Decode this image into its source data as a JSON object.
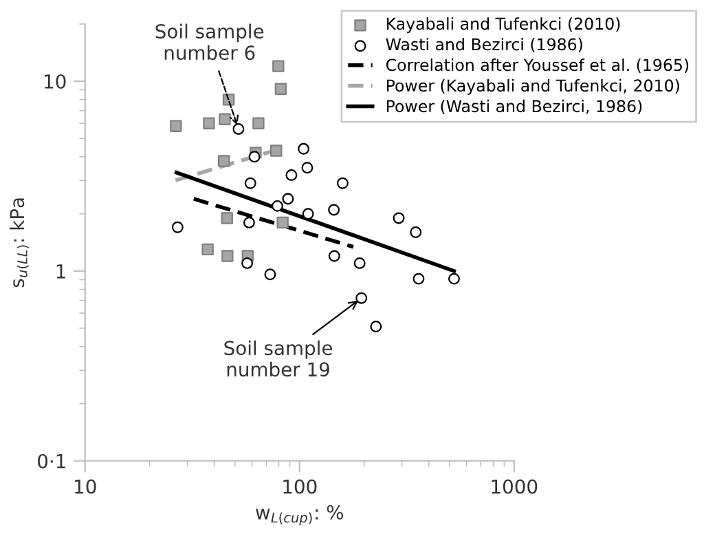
{
  "chart_data": {
    "type": "scatter",
    "xlabel": "w$_{L(cup)}$: %",
    "ylabel": "s$_{u(LL)}$: kPa",
    "log": "xy",
    "xlim": [
      10,
      1000
    ],
    "xticks": [
      10,
      100,
      1000
    ],
    "ylim": [
      0.1,
      20
    ],
    "yticks": [
      {
        "value": 0.1,
        "label": "0·1"
      },
      1,
      10
    ],
    "grid": false,
    "legend": "top right",
    "annotations": [
      {
        "text": "Soil sample\nnumber 6",
        "x": 51.9,
        "y": 5.6
      },
      {
        "text": "Soil sample\nnumber 19",
        "x": 194.2,
        "y": 0.72
      }
    ],
    "series": [
      {
        "name": "Kayabali and Tufenkci (2010)",
        "marker": "square",
        "color": "#a6a6a6",
        "x": [
          26.5,
          37.8,
          44.8,
          46.7,
          64.3,
          79.6,
          81.7,
          77.8,
          62.4,
          44.4,
          45.9,
          83.4,
          37.3,
          46.1,
          57.3
        ],
        "values": [
          5.8,
          6.0,
          6.3,
          8.0,
          6.0,
          12.0,
          9.1,
          4.3,
          4.2,
          3.8,
          1.9,
          1.8,
          1.3,
          1.2,
          1.2
        ]
      },
      {
        "name": "Wasti and Bezirci (1986)",
        "marker": "circle",
        "color": "#ffffff",
        "x": [
          51.9,
          104.4,
          61.6,
          91.6,
          108.6,
          59.0,
          158.8,
          88.3,
          78.8,
          109.6,
          144.5,
          27.0,
          58.2,
          57.0,
          72.9,
          145.2,
          190.6,
          194.2,
          227,
          290,
          348,
          359,
          525
        ],
        "values": [
          5.6,
          4.4,
          4.0,
          3.2,
          3.5,
          2.9,
          2.9,
          2.4,
          2.2,
          2.0,
          2.1,
          1.7,
          1.8,
          1.1,
          0.96,
          1.2,
          1.1,
          0.72,
          0.51,
          1.9,
          1.6,
          0.91,
          0.91
        ]
      },
      {
        "name": "Correlation after Youssef et al. (1965)",
        "type": "line",
        "line_style": "dashed",
        "color": "#000000",
        "x": [
          32.1,
          178
        ],
        "values": [
          2.4,
          1.34
        ]
      },
      {
        "name": "Power (Kayabali and Tufenkci, 2010)",
        "type": "line",
        "line_style": "dashed",
        "color": "#a6a6a6",
        "x": [
          26.4,
          80.9
        ],
        "values": [
          3.0,
          4.4
        ]
      },
      {
        "name": "Power (Wasti and Bezirci, 1986)",
        "type": "line",
        "line_style": "solid",
        "color": "#000000",
        "x": [
          26.7,
          525
        ],
        "values": [
          3.3,
          1.0
        ]
      }
    ]
  }
}
